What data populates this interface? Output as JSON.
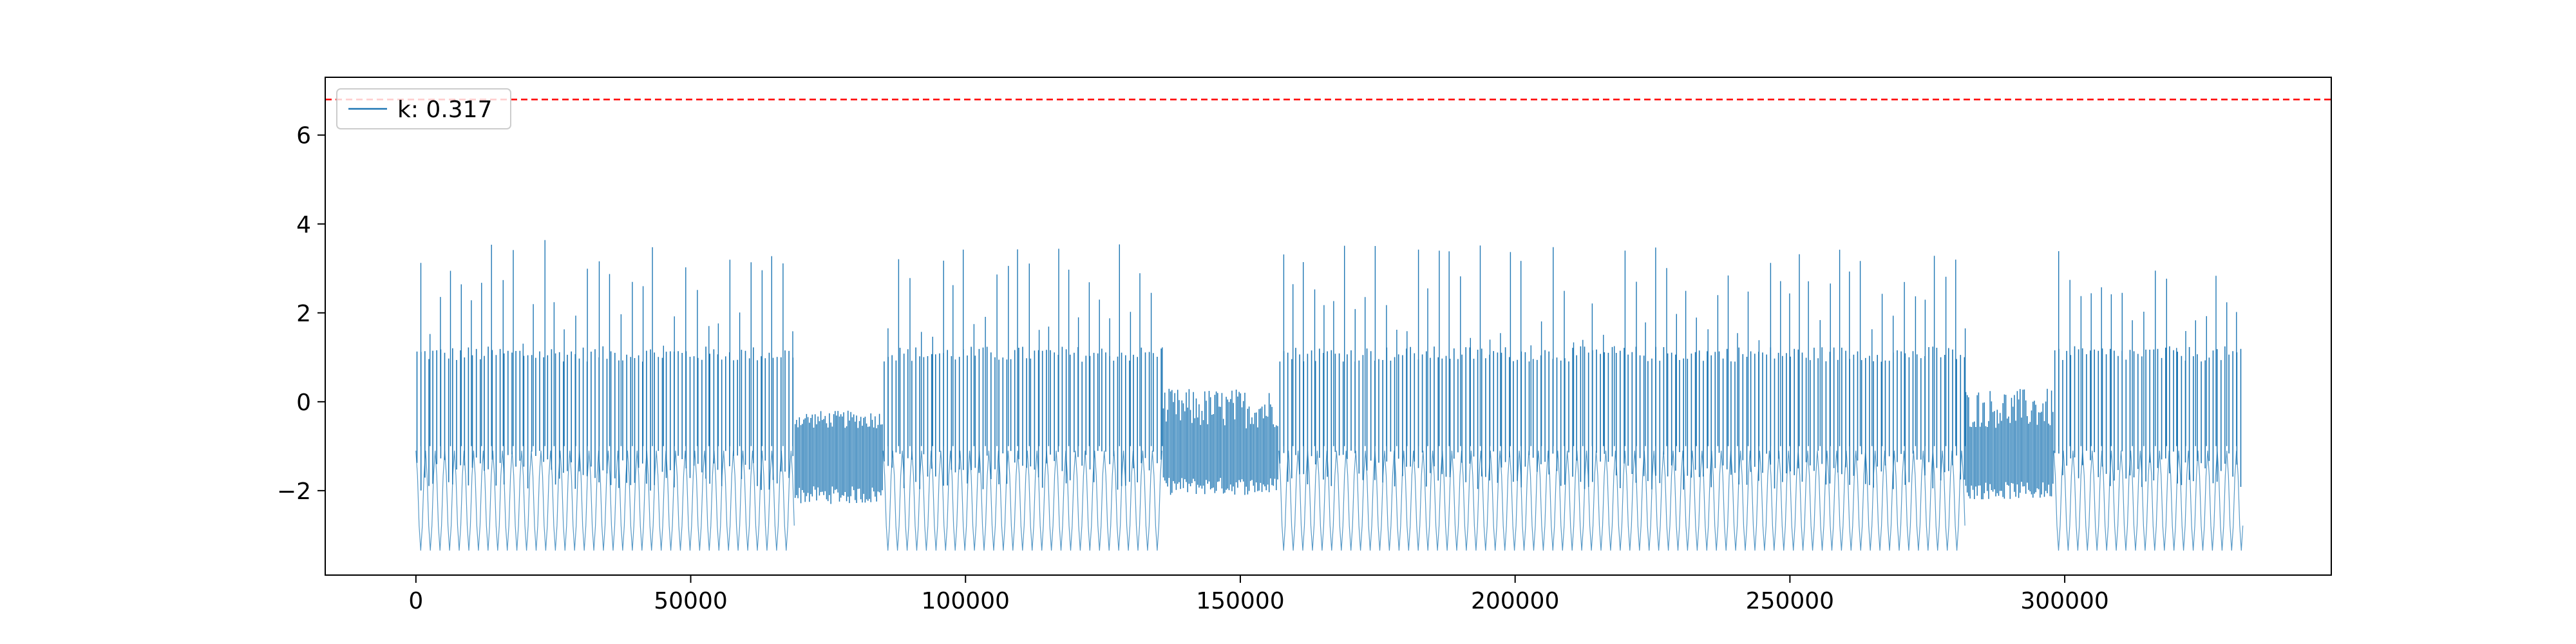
{
  "chart_data": {
    "type": "line",
    "title": "",
    "xlabel": "",
    "ylabel": "",
    "xlim": [
      -16500,
      348500
    ],
    "ylim": [
      -3.9,
      7.3
    ],
    "x_ticks": [
      0,
      50000,
      100000,
      150000,
      200000,
      250000,
      300000
    ],
    "x_tick_labels": [
      "0",
      "50000",
      "100000",
      "150000",
      "200000",
      "250000",
      "300000"
    ],
    "y_ticks": [
      -2,
      0,
      2,
      4,
      6
    ],
    "y_tick_labels": [
      "−2",
      "0",
      "2",
      "4",
      "6"
    ],
    "grid": false,
    "legend": {
      "position": "top-left",
      "entries": [
        {
          "label": "k: 0.317",
          "color": "#1f77b4"
        }
      ]
    },
    "threshold": {
      "y": 6.8,
      "color": "#ff0000",
      "style": "dashed"
    },
    "series_color": "#1f77b4",
    "x_range": [
      0,
      332500
    ],
    "segments": [
      {
        "x": [
          0,
          69000
        ],
        "pattern": "active",
        "peak_max": 3.7,
        "upper": 1.2,
        "lower": -3.35
      },
      {
        "x": [
          69000,
          85000
        ],
        "pattern": "low",
        "upper": -0.2,
        "lower": -2.3
      },
      {
        "x": [
          85000,
          136000
        ],
        "pattern": "active",
        "peak_max": 3.7,
        "upper": 1.2,
        "lower": -3.35
      },
      {
        "x": [
          136000,
          157000
        ],
        "pattern": "low",
        "upper": 0.3,
        "lower": -2.1
      },
      {
        "x": [
          157000,
          282000
        ],
        "pattern": "active",
        "peak_max": 3.6,
        "upper": 1.2,
        "lower": -3.35
      },
      {
        "x": [
          282000,
          298000
        ],
        "pattern": "low",
        "upper": 0.3,
        "lower": -2.2
      },
      {
        "x": [
          298000,
          332500
        ],
        "pattern": "active",
        "peak_max": 3.4,
        "upper": 1.2,
        "lower": -3.35
      }
    ]
  }
}
